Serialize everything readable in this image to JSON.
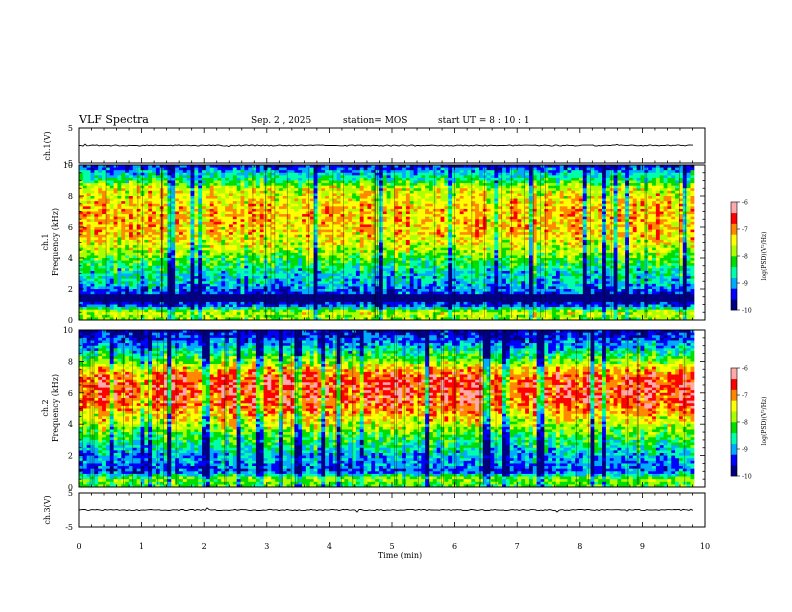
{
  "header": {
    "title": "VLF Spectra",
    "date": "Sep. 2 , 2025",
    "station": "station= MOS",
    "start": "start UT = 8 : 10 : 1"
  },
  "colors": {
    "scale": [
      "#000080",
      "#0000ff",
      "#00aaff",
      "#00ffaa",
      "#00dd00",
      "#aaff00",
      "#ffff00",
      "#ff8800",
      "#ff0000",
      "#ffaaaa"
    ],
    "trace": "#000000"
  },
  "chart_data": [
    {
      "type": "line",
      "name": "ch1-waveform",
      "ylabel": "ch.1(V)",
      "ylim": [
        -5,
        5
      ],
      "yticks": [
        "5",
        "-5"
      ],
      "x": [
        0,
        9.83
      ],
      "values": [
        0,
        0
      ],
      "note": "near-zero flat waveform trace"
    },
    {
      "type": "heatmap",
      "name": "ch1-spectrogram",
      "ylabel_line1": "ch.1",
      "ylabel_line2": "Frequency (kHz)",
      "xlim": [
        0,
        10
      ],
      "ylim": [
        0,
        10
      ],
      "data_end_min": 9.83,
      "yticks": [
        "0",
        "2",
        "4",
        "6",
        "8",
        "10"
      ],
      "profile_khz": [
        0,
        0.5,
        1,
        1.5,
        2,
        2.5,
        3,
        3.5,
        4,
        4.5,
        5,
        5.5,
        6,
        6.5,
        7,
        7.5,
        8,
        8.5,
        9,
        9.5,
        10
      ],
      "profile_log_psd": [
        -8.0,
        -7.6,
        -9.5,
        -9.4,
        -9.2,
        -8.8,
        -8.7,
        -8.4,
        -8.1,
        -7.8,
        -7.5,
        -7.3,
        -7.2,
        -7.2,
        -7.2,
        -7.3,
        -7.5,
        -7.6,
        -8.4,
        -8.8,
        -9.6
      ]
    },
    {
      "type": "heatmap",
      "name": "ch2-spectrogram",
      "ylabel_line1": "ch.2",
      "ylabel_line2": "Frequency (kHz)",
      "xlim": [
        0,
        10
      ],
      "ylim": [
        0,
        10
      ],
      "data_end_min": 9.83,
      "yticks": [
        "0",
        "2",
        "4",
        "6",
        "8",
        "10"
      ],
      "profile_khz": [
        0,
        0.5,
        1,
        1.5,
        2,
        2.5,
        3,
        3.5,
        4,
        4.5,
        5,
        5.5,
        6,
        6.5,
        7,
        7.5,
        8,
        8.5,
        9,
        9.5,
        10
      ],
      "profile_log_psd": [
        -8.3,
        -7.8,
        -9.3,
        -9.0,
        -8.9,
        -8.6,
        -8.3,
        -8.0,
        -7.6,
        -7.3,
        -6.9,
        -6.7,
        -6.6,
        -6.6,
        -6.7,
        -7.2,
        -7.9,
        -8.4,
        -8.9,
        -9.3,
        -9.7
      ]
    },
    {
      "type": "line",
      "name": "ch3-waveform",
      "ylabel": "ch.3(V)",
      "ylim": [
        -5,
        5
      ],
      "yticks": [
        "5",
        "-5"
      ],
      "x": [
        0,
        9.83
      ],
      "values": [
        0,
        0
      ],
      "note": "near-zero flat waveform trace"
    }
  ],
  "x_axis": {
    "label": "Time (min)",
    "range": [
      0,
      10
    ],
    "ticks": [
      "0",
      "1",
      "2",
      "3",
      "4",
      "5",
      "6",
      "7",
      "8",
      "9",
      "10"
    ]
  },
  "colorbar": {
    "label": "log(PSD)(V²/Hz)",
    "range": [
      -10,
      -6
    ],
    "ticks": [
      "-6",
      "-7",
      "-8",
      "-9",
      "-10"
    ]
  }
}
